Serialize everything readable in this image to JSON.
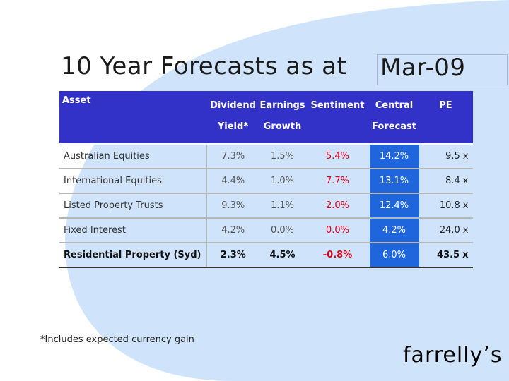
{
  "slide": {
    "title": "10 Year Forecasts as at",
    "title_date": "Mar-09",
    "footnote": "*Includes expected currency gain",
    "logo": "farrelly’s"
  },
  "table": {
    "headers": {
      "asset": "Asset",
      "dividend_yield": [
        "Dividend",
        "Yield*"
      ],
      "earnings_growth": [
        "Earnings",
        "Growth"
      ],
      "sentiment": "Sentiment",
      "central_forecast": [
        "Central",
        "Forecast"
      ],
      "pe": "PE"
    },
    "pe_suffix": "x",
    "rows": [
      {
        "asset": "Australian  Equities",
        "dividend_yield": "7.3%",
        "earnings_growth": "1.5%",
        "sentiment": "5.4%",
        "central_forecast": "14.2%",
        "pe": "9.5"
      },
      {
        "asset": "International  Equities",
        "dividend_yield": "4.4%",
        "earnings_growth": "1.0%",
        "sentiment": "7.7%",
        "central_forecast": "13.1%",
        "pe": "8.4"
      },
      {
        "asset": "Listed Property Trusts",
        "dividend_yield": "9.3%",
        "earnings_growth": "1.1%",
        "sentiment": "2.0%",
        "central_forecast": "12.4%",
        "pe": "10.8"
      },
      {
        "asset": "Fixed Interest",
        "dividend_yield": "4.2%",
        "earnings_growth": "0.0%",
        "sentiment": "0.0%",
        "central_forecast": "4.2%",
        "pe": "24.0"
      },
      {
        "asset": "Residential Property (Syd)",
        "dividend_yield": "2.3%",
        "earnings_growth": "4.5%",
        "sentiment": "-0.8%",
        "central_forecast": "6.0%",
        "pe": "43.5"
      }
    ]
  },
  "colors": {
    "header_bg": "#3232c8",
    "forecast_bg": "#1f66dd",
    "sentiment_text": "#e2001a",
    "background_arc": "#cfe4fb"
  }
}
